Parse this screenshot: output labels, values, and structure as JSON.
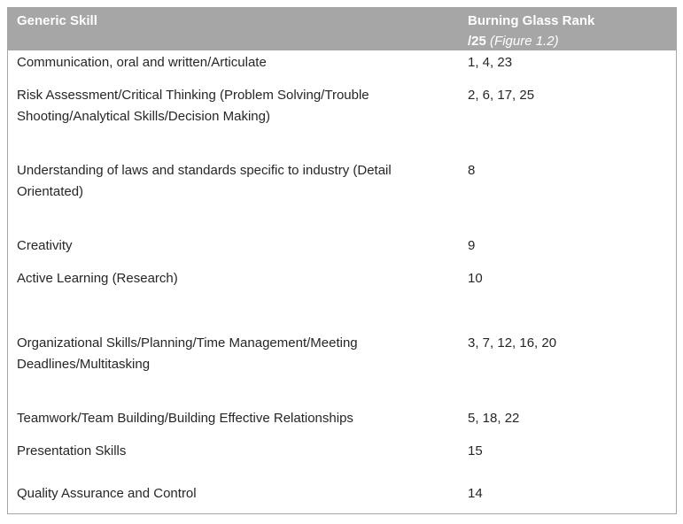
{
  "table": {
    "header": {
      "col1": "Generic Skill",
      "col2_line1": "Burning Glass Rank",
      "col2_line2_bold": "/25",
      "col2_line2_italic": "(Figure 1.2)"
    },
    "rows": [
      {
        "skill": "Communication, oral and written/Articulate",
        "rank": "1, 4, 23"
      },
      {
        "skill": "Risk Assessment/Critical Thinking (Problem Solving/Trouble Shooting/Analytical Skills/Decision Making)",
        "rank": "2, 6, 17, 25"
      },
      {
        "skill": "Understanding of laws and standards specific to industry (Detail Orientated)",
        "rank": "8"
      },
      {
        "skill": "Creativity",
        "rank": "9"
      },
      {
        "skill": "Active Learning (Research)",
        "rank": "10"
      },
      {
        "skill": "Organizational Skills/Planning/Time Management/Meeting Deadlines/Multitasking",
        "rank": "3, 7, 12, 16, 20"
      },
      {
        "skill": "Teamwork/Team Building/Building Effective Relationships",
        "rank": "5, 18, 22"
      },
      {
        "skill": "Presentation Skills",
        "rank": "15"
      },
      {
        "skill": "Quality Assurance and Control",
        "rank": "14"
      }
    ]
  }
}
